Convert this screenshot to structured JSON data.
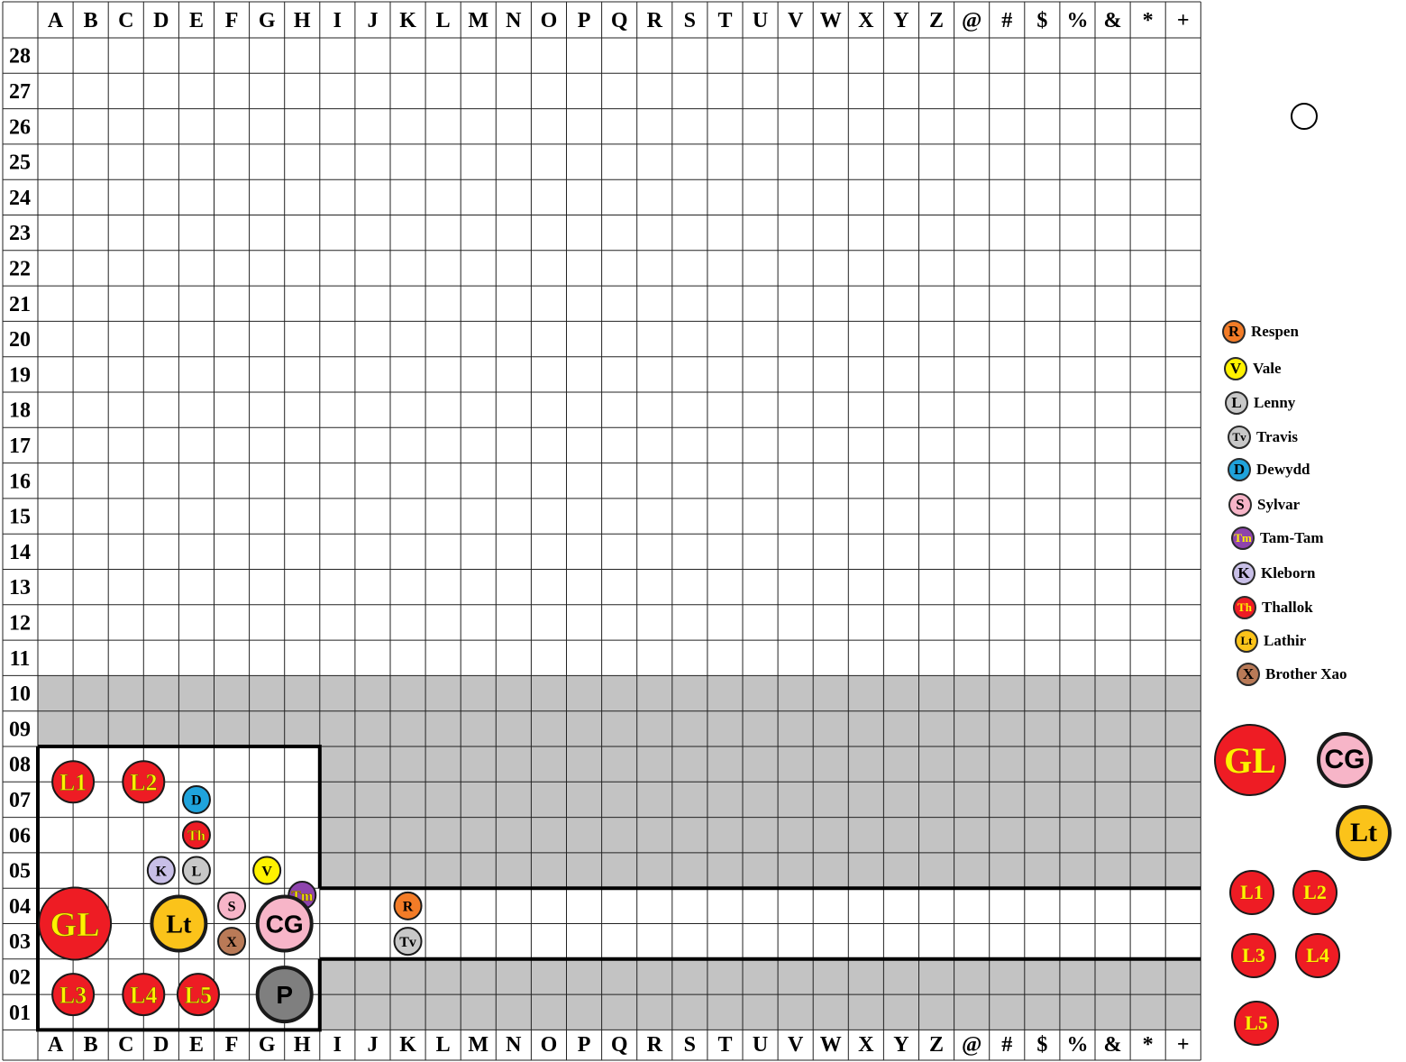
{
  "columns": [
    "A",
    "B",
    "C",
    "D",
    "E",
    "F",
    "G",
    "H",
    "I",
    "J",
    "K",
    "L",
    "M",
    "N",
    "O",
    "P",
    "Q",
    "R",
    "S",
    "T",
    "U",
    "V",
    "W",
    "X",
    "Y",
    "Z",
    "@",
    "#",
    "$",
    "%",
    "&",
    "*",
    "+"
  ],
  "rows": [
    "28",
    "27",
    "26",
    "25",
    "24",
    "23",
    "22",
    "21",
    "20",
    "19",
    "18",
    "17",
    "16",
    "15",
    "14",
    "13",
    "12",
    "11",
    "10",
    "09",
    "08",
    "07",
    "06",
    "05",
    "04",
    "03",
    "02",
    "01"
  ],
  "colors": {
    "shaded": "#c3c3c3",
    "red": "#ee1c24",
    "pink": "#f7b5c8",
    "gold": "#fbc31a",
    "grey": "#7f7f7f",
    "light_grey": "#c8c8c8",
    "orange": "#f37c27",
    "yellow": "#fff200",
    "blue": "#1fa3dc",
    "purple": "#8e44ad",
    "lavender": "#c8bfe7",
    "brown": "#b97a57",
    "yellow_text": "#fff200"
  },
  "board_tokens": [
    {
      "id": "L1",
      "label": "L1",
      "col": "A",
      "row": "07.5",
      "fill": "red",
      "text": "yellow_text",
      "size": "medium"
    },
    {
      "id": "L2",
      "label": "L2",
      "col": "C",
      "row": "07.5",
      "fill": "red",
      "text": "yellow_text",
      "size": "medium"
    },
    {
      "id": "D",
      "label": "D",
      "col": "E",
      "row": "07",
      "fill": "blue",
      "text": "black",
      "size": "small"
    },
    {
      "id": "Th",
      "label": "Th",
      "col": "E",
      "row": "06",
      "fill": "red",
      "text": "yellow_text",
      "size": "small"
    },
    {
      "id": "K",
      "label": "K",
      "col": "D",
      "row": "05",
      "fill": "lavender",
      "text": "black",
      "size": "small"
    },
    {
      "id": "L",
      "label": "L",
      "col": "E",
      "row": "05",
      "fill": "light_grey",
      "text": "black",
      "size": "small"
    },
    {
      "id": "V",
      "label": "V",
      "col": "G",
      "row": "05",
      "fill": "yellow",
      "text": "black",
      "size": "small"
    },
    {
      "id": "Tm",
      "label": "Tm",
      "col": "H",
      "row": "04.3",
      "fill": "purple",
      "text": "yellow_text",
      "size": "small"
    },
    {
      "id": "GL",
      "label": "GL",
      "col": "B",
      "row": "03.5",
      "fill": "red",
      "text": "yellow_text",
      "size": "large"
    },
    {
      "id": "Lt",
      "label": "Lt",
      "col": "E",
      "row": "03.5",
      "fill": "gold",
      "text": "black",
      "size": "big"
    },
    {
      "id": "S",
      "label": "S",
      "col": "F",
      "row": "04",
      "fill": "pink",
      "text": "black",
      "size": "small"
    },
    {
      "id": "X",
      "label": "X",
      "col": "F",
      "row": "03",
      "fill": "brown",
      "text": "black",
      "size": "small"
    },
    {
      "id": "CG",
      "label": "CG",
      "col": "GH",
      "row": "03.5",
      "fill": "pink",
      "text": "black",
      "size": "big"
    },
    {
      "id": "R",
      "label": "R",
      "col": "K",
      "row": "04",
      "fill": "orange",
      "text": "black",
      "size": "small"
    },
    {
      "id": "Tv",
      "label": "Tv",
      "col": "K",
      "row": "03",
      "fill": "light_grey",
      "text": "black",
      "size": "small"
    },
    {
      "id": "L3",
      "label": "L3",
      "col": "A",
      "row": "01.5",
      "fill": "red",
      "text": "yellow_text",
      "size": "medium"
    },
    {
      "id": "L4",
      "label": "L4",
      "col": "C",
      "row": "01.5",
      "fill": "red",
      "text": "yellow_text",
      "size": "medium"
    },
    {
      "id": "L5",
      "label": "L5",
      "col": "E",
      "row": "01.5",
      "fill": "red",
      "text": "yellow_text",
      "size": "medium"
    },
    {
      "id": "P",
      "label": "P",
      "col": "GH",
      "row": "01.5",
      "fill": "grey",
      "text": "black",
      "size": "big"
    }
  ],
  "legend": [
    {
      "token": "R",
      "name": "Respen",
      "fill": "orange",
      "text": "black"
    },
    {
      "token": "V",
      "name": "Vale",
      "fill": "yellow",
      "text": "black"
    },
    {
      "token": "L",
      "name": "Lenny",
      "fill": "light_grey",
      "text": "black"
    },
    {
      "token": "Tv",
      "name": "Travis",
      "fill": "light_grey",
      "text": "black"
    },
    {
      "token": "D",
      "name": "Dewydd",
      "fill": "blue",
      "text": "black"
    },
    {
      "token": "S",
      "name": "Sylvar",
      "fill": "pink",
      "text": "black"
    },
    {
      "token": "Tm",
      "name": "Tam-Tam",
      "fill": "purple",
      "text": "yellow_text"
    },
    {
      "token": "K",
      "name": "Kleborn",
      "fill": "lavender",
      "text": "black"
    },
    {
      "token": "Th",
      "name": "Thallok",
      "fill": "red",
      "text": "yellow_text"
    },
    {
      "token": "Lt",
      "name": "Lathir",
      "fill": "gold",
      "text": "black"
    },
    {
      "token": "X",
      "name": "Brother Xao",
      "fill": "brown",
      "text": "black"
    }
  ],
  "reserve_tokens": [
    {
      "label": "GL",
      "fill": "red",
      "text": "yellow_text"
    },
    {
      "label": "CG",
      "fill": "pink",
      "text": "black"
    },
    {
      "label": "Lt",
      "fill": "gold",
      "text": "black"
    },
    {
      "label": "L1",
      "fill": "red",
      "text": "yellow_text"
    },
    {
      "label": "L2",
      "fill": "red",
      "text": "yellow_text"
    },
    {
      "label": "L3",
      "fill": "red",
      "text": "yellow_text"
    },
    {
      "label": "L4",
      "fill": "red",
      "text": "yellow_text"
    },
    {
      "label": "L5",
      "fill": "red",
      "text": "yellow_text"
    }
  ]
}
